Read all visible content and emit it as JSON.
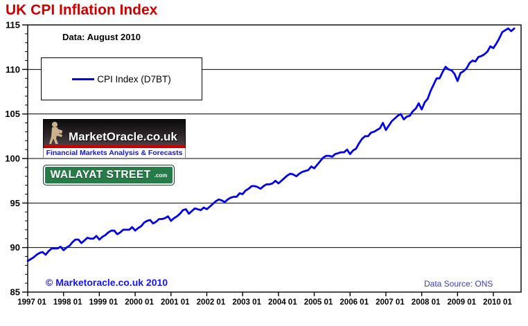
{
  "page": {
    "title": "UK CPI Inflation Index",
    "data_asof": "Data: August 2010",
    "copyright": "© Marketoracle.co.uk  2010",
    "data_source": "Data Source: ONS"
  },
  "branding": {
    "marketoracle_name": "MarketOracle.co.uk",
    "marketoracle_tagline": "Financial Markets Analysis & Forecasts",
    "walayat_name": "WALAYAT STREET",
    "walayat_suffix": ".com"
  },
  "colors": {
    "title_red": "#cc0000",
    "line_blue": "#0000ee",
    "copyright_blue": "#1414ff",
    "source_blue": "#3a3acc",
    "walayat_green": "#267b48",
    "axis_black": "#000000"
  },
  "chart_data": {
    "type": "line",
    "title": "UK CPI Inflation Index",
    "xlabel": "",
    "ylabel": "",
    "ylim": [
      85,
      115
    ],
    "y_ticks": [
      85,
      90,
      95,
      100,
      105,
      110,
      115
    ],
    "y_minor_tick_step": 1,
    "grid": "horizontal",
    "legend_position": "upper-left-box",
    "legend": [
      "CPI Index (D7BT)"
    ],
    "x_tick_labels": [
      "1997 01",
      "1998 01",
      "1999 01",
      "2000 01",
      "2001 01",
      "2002 01",
      "2003 01",
      "2004 01",
      "2005 01",
      "2006 01",
      "2007 01",
      "2008 01",
      "2009 01",
      "2010 01"
    ],
    "series": [
      {
        "name": "CPI Index (D7BT)",
        "color": "#0000ee",
        "frequency": "monthly",
        "x_start": "1997-01",
        "x_end": "2010-08",
        "values": [
          88.5,
          88.7,
          88.9,
          89.2,
          89.4,
          89.5,
          89.2,
          89.6,
          89.9,
          89.9,
          89.9,
          90.1,
          89.7,
          90.0,
          90.2,
          90.6,
          90.9,
          90.9,
          90.5,
          90.8,
          91.1,
          91.0,
          91.0,
          91.3,
          90.9,
          91.2,
          91.4,
          91.7,
          91.9,
          91.9,
          91.5,
          91.7,
          92.0,
          92.0,
          92.0,
          92.3,
          91.9,
          92.2,
          92.4,
          92.8,
          93.0,
          93.1,
          92.7,
          92.9,
          93.2,
          93.2,
          93.3,
          93.5,
          93.0,
          93.3,
          93.5,
          93.8,
          94.2,
          94.3,
          93.8,
          94.1,
          94.4,
          94.3,
          94.2,
          94.5,
          94.3,
          94.6,
          94.9,
          95.2,
          95.4,
          95.3,
          95.1,
          95.4,
          95.6,
          95.7,
          95.7,
          96.1,
          96.0,
          96.4,
          96.6,
          96.9,
          96.9,
          96.8,
          96.6,
          96.9,
          97.1,
          97.1,
          97.2,
          97.5,
          97.2,
          97.5,
          97.8,
          98.1,
          98.3,
          98.2,
          98.0,
          98.3,
          98.5,
          98.6,
          98.7,
          99.1,
          98.9,
          99.3,
          99.7,
          100.1,
          100.3,
          100.3,
          100.2,
          100.5,
          100.6,
          100.7,
          100.7,
          101.0,
          100.5,
          100.9,
          101.1,
          101.7,
          102.2,
          102.5,
          102.5,
          102.9,
          103.0,
          103.2,
          103.4,
          104.0,
          103.2,
          103.7,
          104.2,
          104.5,
          104.8,
          105.0,
          104.4,
          104.7,
          104.8,
          105.3,
          105.6,
          106.2,
          105.5,
          106.3,
          106.7,
          107.6,
          108.3,
          109.0,
          109.0,
          109.7,
          110.3,
          110.0,
          109.9,
          109.5,
          108.7,
          109.6,
          109.8,
          110.1,
          110.7,
          111.0,
          110.9,
          111.4,
          111.5,
          111.7,
          112.0,
          112.6,
          112.4,
          112.9,
          113.5,
          114.2,
          114.4,
          114.6,
          114.3,
          114.6
        ]
      }
    ]
  }
}
